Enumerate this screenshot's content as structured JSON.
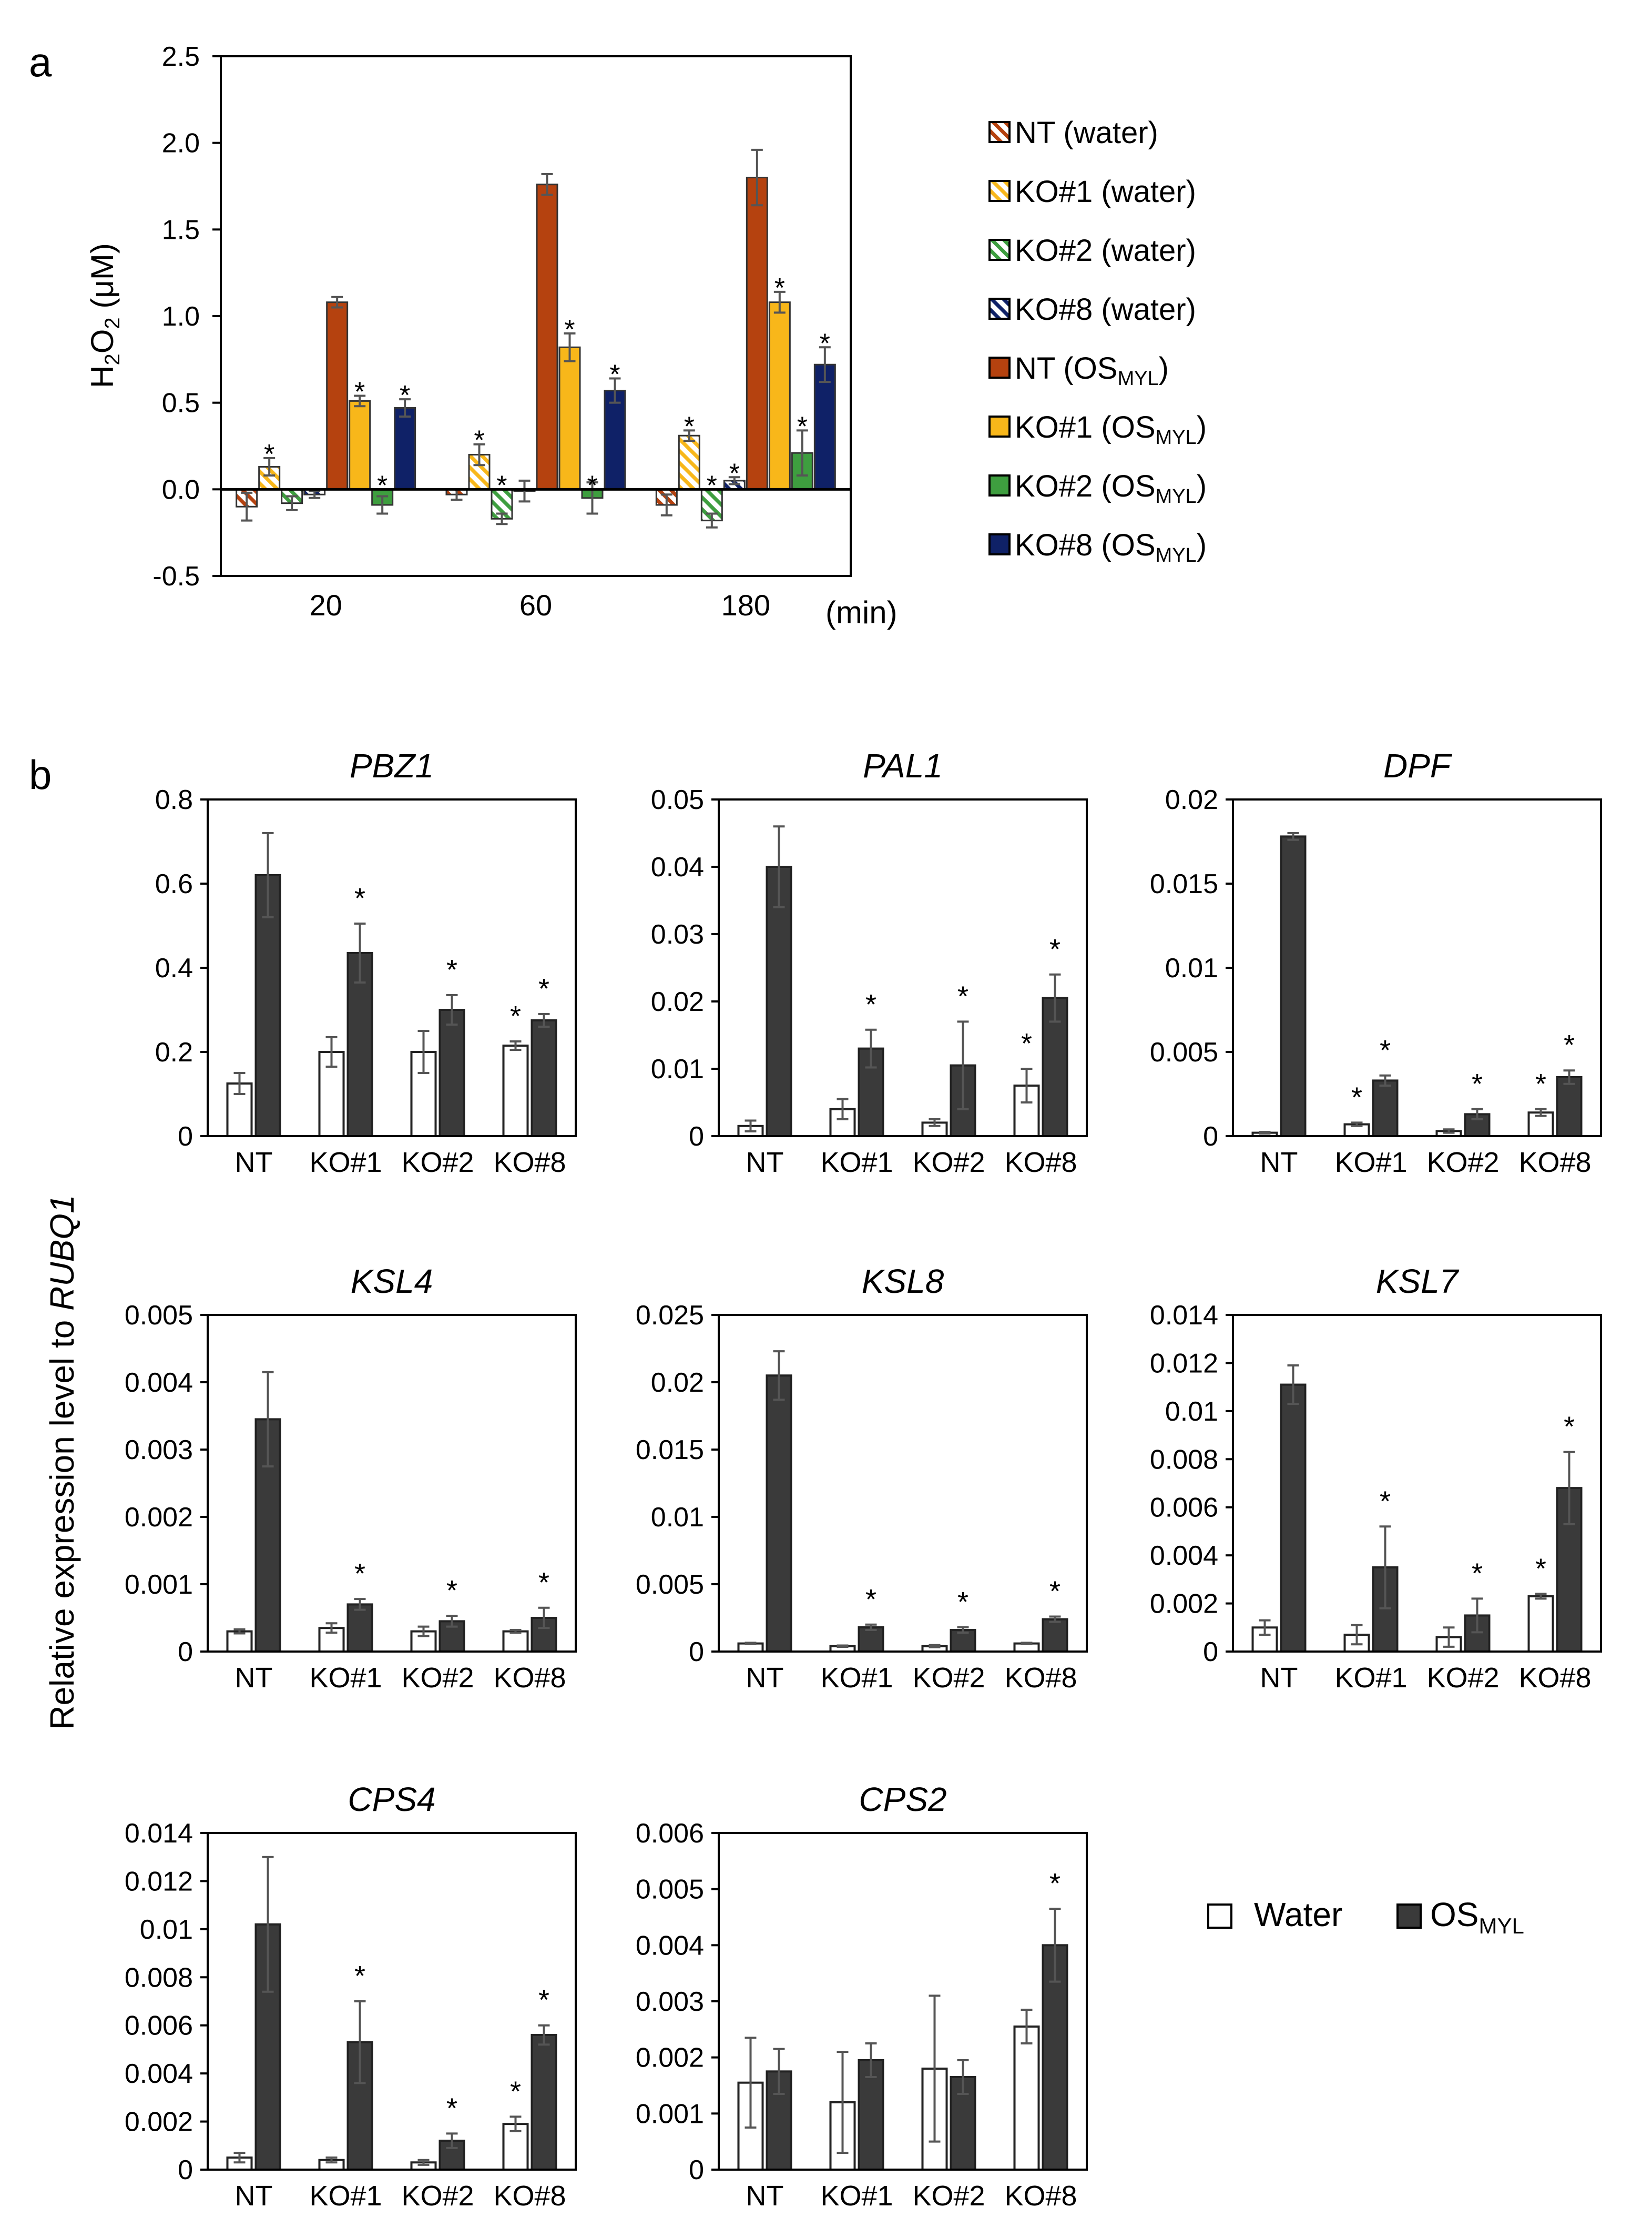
{
  "panel_labels": {
    "a": "a",
    "b": "b"
  },
  "colors": {
    "nt_os": "#B5420F",
    "ko1_os": "#F8B71A",
    "ko2_os": "#3E9E3F",
    "ko8_os": "#0F2167",
    "water_bar": "#ffffff",
    "os_bar": "#3A3A3A",
    "axis": "#000000",
    "error_bar": "#555555"
  },
  "shared_ylabel": {
    "prefix": "Relative expression level to ",
    "gene": "RUBQ1"
  },
  "legend_b": {
    "water": "Water",
    "os_main": "OS",
    "os_sub": "MYL"
  },
  "chart_data": [
    {
      "id": "a",
      "type": "bar",
      "title": "",
      "ylabel": {
        "main": "H",
        "sub": "2",
        "main2": "O",
        "sub2": "2",
        "unit": " (μM)"
      },
      "xunit": "(min)",
      "categories": [
        "20",
        "60",
        "180"
      ],
      "ylim": [
        -0.5,
        2.5
      ],
      "yticks": [
        "2.5",
        "2.0",
        "1.5",
        "1.0",
        "0.5",
        "0.0",
        "-0.5"
      ],
      "grid": false,
      "legend_position": "right",
      "series": [
        {
          "name": "NT  (water)",
          "label_main": "NT  (water)",
          "label_sub": "",
          "label_tail": "",
          "pattern": "nt",
          "values": [
            -0.1,
            -0.03,
            -0.09
          ],
          "errors": [
            0.08,
            0.03,
            0.06
          ],
          "sig": [
            false,
            false,
            false
          ]
        },
        {
          "name": "KO#1 (water)",
          "label_main": "KO#1 (water)",
          "label_sub": "",
          "label_tail": "",
          "pattern": "ko1",
          "values": [
            0.13,
            0.2,
            0.31
          ],
          "errors": [
            0.05,
            0.06,
            0.03
          ],
          "sig": [
            true,
            true,
            true
          ]
        },
        {
          "name": "KO#2 (water)",
          "label_main": "KO#2 (water)",
          "label_sub": "",
          "label_tail": "",
          "pattern": "ko2",
          "values": [
            -0.08,
            -0.17,
            -0.18
          ],
          "errors": [
            0.04,
            0.03,
            0.04
          ],
          "sig": [
            false,
            true,
            true
          ]
        },
        {
          "name": "KO#8 (water)",
          "label_main": "KO#8 (water)",
          "label_sub": "",
          "label_tail": "",
          "pattern": "ko8",
          "values": [
            -0.03,
            -0.01,
            0.05
          ],
          "errors": [
            0.02,
            0.06,
            0.02
          ],
          "sig": [
            false,
            false,
            true
          ]
        },
        {
          "name": "NT  (OSMYL)",
          "label_main": "NT  (OS",
          "label_sub": "MYL",
          "label_tail": ")",
          "pattern": "solid-nt",
          "values": [
            1.08,
            1.76,
            1.8
          ],
          "errors": [
            0.03,
            0.06,
            0.16
          ],
          "sig": [
            false,
            false,
            false
          ]
        },
        {
          "name": "KO#1 (OSMYL)",
          "label_main": "KO#1 (OS",
          "label_sub": "MYL",
          "label_tail": ")",
          "pattern": "solid-ko1",
          "values": [
            0.51,
            0.82,
            1.08
          ],
          "errors": [
            0.03,
            0.08,
            0.06
          ],
          "sig": [
            true,
            true,
            true
          ]
        },
        {
          "name": "KO#2 (OSMYL)",
          "label_main": "KO#2 (OS",
          "label_sub": "MYL",
          "label_tail": ")",
          "pattern": "solid-ko2",
          "values": [
            -0.09,
            -0.05,
            0.21
          ],
          "errors": [
            0.05,
            0.09,
            0.13
          ],
          "sig": [
            true,
            true,
            true
          ]
        },
        {
          "name": "KO#8 (OSMYL)",
          "label_main": "KO#8 (OS",
          "label_sub": "MYL",
          "label_tail": ")",
          "pattern": "solid-ko8",
          "values": [
            0.47,
            0.57,
            0.72
          ],
          "errors": [
            0.05,
            0.07,
            0.1
          ],
          "sig": [
            true,
            true,
            true
          ]
        }
      ]
    },
    {
      "id": "PBZ1",
      "type": "bar",
      "title": "PBZ1",
      "categories": [
        "NT",
        "KO#1",
        "KO#2",
        "KO#8"
      ],
      "ylim": [
        0,
        0.8
      ],
      "yticks": [
        "0.8",
        "0.6",
        "0.4",
        "0.2",
        "0"
      ],
      "series": [
        {
          "name": "Water",
          "values": [
            0.125,
            0.2,
            0.2,
            0.215
          ],
          "errors": [
            0.025,
            0.035,
            0.05,
            0.01
          ],
          "sig": [
            false,
            false,
            false,
            true
          ]
        },
        {
          "name": "OSMYL",
          "values": [
            0.62,
            0.435,
            0.3,
            0.275
          ],
          "errors": [
            0.1,
            0.07,
            0.035,
            0.015
          ],
          "sig": [
            false,
            true,
            true,
            true
          ]
        }
      ]
    },
    {
      "id": "PAL1",
      "type": "bar",
      "title": "PAL1",
      "categories": [
        "NT",
        "KO#1",
        "KO#2",
        "KO#8"
      ],
      "ylim": [
        0,
        0.05
      ],
      "yticks": [
        "0.05",
        "0.04",
        "0.03",
        "0.02",
        "0.01",
        "0"
      ],
      "series": [
        {
          "name": "Water",
          "values": [
            0.0015,
            0.004,
            0.002,
            0.0075
          ],
          "errors": [
            0.0008,
            0.0015,
            0.0005,
            0.0025
          ],
          "sig": [
            false,
            false,
            false,
            true
          ]
        },
        {
          "name": "OSMYL",
          "values": [
            0.04,
            0.013,
            0.0105,
            0.0205
          ],
          "errors": [
            0.006,
            0.0028,
            0.0065,
            0.0035
          ],
          "sig": [
            false,
            true,
            true,
            true
          ]
        }
      ]
    },
    {
      "id": "DPF",
      "type": "bar",
      "title": "DPF",
      "categories": [
        "NT",
        "KO#1",
        "KO#2",
        "KO#8"
      ],
      "ylim": [
        0,
        0.02
      ],
      "yticks": [
        "0.02",
        "0.015",
        "0.01",
        "0.005",
        "0"
      ],
      "series": [
        {
          "name": "Water",
          "values": [
            0.0002,
            0.0007,
            0.0003,
            0.0014
          ],
          "errors": [
            5e-05,
            0.0001,
            0.0001,
            0.0002
          ],
          "sig": [
            false,
            true,
            false,
            true
          ]
        },
        {
          "name": "OSMYL",
          "values": [
            0.0178,
            0.0033,
            0.0013,
            0.0035
          ],
          "errors": [
            0.0002,
            0.0003,
            0.0003,
            0.0004
          ],
          "sig": [
            false,
            true,
            true,
            true
          ]
        }
      ]
    },
    {
      "id": "KSL4",
      "type": "bar",
      "title": "KSL4",
      "categories": [
        "NT",
        "KO#1",
        "KO#2",
        "KO#8"
      ],
      "ylim": [
        0,
        0.005
      ],
      "yticks": [
        "0.005",
        "0.004",
        "0.003",
        "0.002",
        "0.001",
        "0"
      ],
      "series": [
        {
          "name": "Water",
          "values": [
            0.0003,
            0.00035,
            0.0003,
            0.0003
          ],
          "errors": [
            3e-05,
            7e-05,
            7e-05,
            2e-05
          ],
          "sig": [
            false,
            false,
            false,
            false
          ]
        },
        {
          "name": "OSMYL",
          "values": [
            0.00345,
            0.0007,
            0.00045,
            0.0005
          ],
          "errors": [
            0.0007,
            8e-05,
            8e-05,
            0.00015
          ],
          "sig": [
            false,
            true,
            true,
            true
          ]
        }
      ]
    },
    {
      "id": "KSL8",
      "type": "bar",
      "title": "KSL8",
      "categories": [
        "NT",
        "KO#1",
        "KO#2",
        "KO#8"
      ],
      "ylim": [
        0,
        0.025
      ],
      "yticks": [
        "0.025",
        "0.02",
        "0.015",
        "0.01",
        "0.005",
        "0"
      ],
      "series": [
        {
          "name": "Water",
          "values": [
            0.0006,
            0.0004,
            0.0004,
            0.0006
          ],
          "errors": [
            5e-05,
            5e-05,
            8e-05,
            5e-05
          ],
          "sig": [
            false,
            false,
            false,
            false
          ]
        },
        {
          "name": "OSMYL",
          "values": [
            0.0205,
            0.0018,
            0.0016,
            0.0024
          ],
          "errors": [
            0.0018,
            0.0002,
            0.0002,
            0.0002
          ],
          "sig": [
            false,
            true,
            true,
            true
          ]
        }
      ]
    },
    {
      "id": "KSL7",
      "type": "bar",
      "title": "KSL7",
      "categories": [
        "NT",
        "KO#1",
        "KO#2",
        "KO#8"
      ],
      "ylim": [
        0,
        0.014
      ],
      "yticks": [
        "0.014",
        "0.012",
        "0.01",
        "0.008",
        "0.006",
        "0.004",
        "0.002",
        "0"
      ],
      "series": [
        {
          "name": "Water",
          "values": [
            0.001,
            0.0007,
            0.0006,
            0.0023
          ],
          "errors": [
            0.0003,
            0.0004,
            0.0004,
            0.0001
          ],
          "sig": [
            false,
            false,
            false,
            true
          ]
        },
        {
          "name": "OSMYL",
          "values": [
            0.0111,
            0.0035,
            0.0015,
            0.0068
          ],
          "errors": [
            0.0008,
            0.0017,
            0.0007,
            0.0015
          ],
          "sig": [
            false,
            true,
            true,
            true
          ]
        }
      ]
    },
    {
      "id": "CPS4",
      "type": "bar",
      "title": "CPS4",
      "categories": [
        "NT",
        "KO#1",
        "KO#2",
        "KO#8"
      ],
      "ylim": [
        0,
        0.014
      ],
      "yticks": [
        "0.014",
        "0.012",
        "0.01",
        "0.008",
        "0.006",
        "0.004",
        "0.002",
        "0"
      ],
      "series": [
        {
          "name": "Water",
          "values": [
            0.0005,
            0.0004,
            0.0003,
            0.0019
          ],
          "errors": [
            0.0002,
            0.0001,
            0.0001,
            0.0003
          ],
          "sig": [
            false,
            false,
            false,
            true
          ]
        },
        {
          "name": "OSMYL",
          "values": [
            0.0102,
            0.0053,
            0.0012,
            0.0056
          ],
          "errors": [
            0.0028,
            0.0017,
            0.0003,
            0.0004
          ],
          "sig": [
            false,
            true,
            true,
            true
          ]
        }
      ]
    },
    {
      "id": "CPS2",
      "type": "bar",
      "title": "CPS2",
      "categories": [
        "NT",
        "KO#1",
        "KO#2",
        "KO#8"
      ],
      "ylim": [
        0,
        0.006
      ],
      "yticks": [
        "0.006",
        "0.005",
        "0.004",
        "0.003",
        "0.002",
        "0.001",
        "0"
      ],
      "series": [
        {
          "name": "Water",
          "values": [
            0.00155,
            0.0012,
            0.0018,
            0.00255
          ],
          "errors": [
            0.0008,
            0.0009,
            0.0013,
            0.0003
          ],
          "sig": [
            false,
            false,
            false,
            false
          ]
        },
        {
          "name": "OSMYL",
          "values": [
            0.00175,
            0.00195,
            0.00165,
            0.004
          ],
          "errors": [
            0.0004,
            0.0003,
            0.0003,
            0.00065
          ],
          "sig": [
            false,
            false,
            false,
            true
          ]
        }
      ]
    }
  ]
}
